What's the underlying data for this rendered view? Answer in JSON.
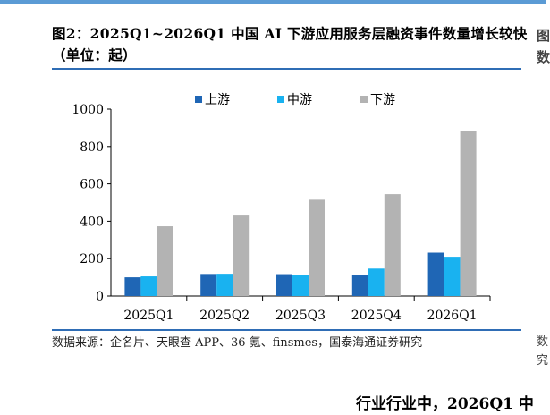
{
  "page": {
    "title": "图2：2025Q1~2026Q1 中国 AI 下游应用服务层融资事件数量增长较快（单位：起）",
    "source": "数据来源：企名片、天眼查 APP、36 氪、finsmes，国泰海通证券研究",
    "right_fragment_top": "图\n数",
    "right_fragment_bottom": "数\n究",
    "cut_heading": "行业行业中，2026Q1 中"
  },
  "colors": {
    "top_rule": "#5b9bd5",
    "rule": "#2f6db5",
    "series": [
      "#1f66b5",
      "#19b2f0",
      "#b3b3b3"
    ]
  },
  "chart_data": {
    "type": "bar",
    "title": "",
    "xlabel": "",
    "ylabel": "",
    "categories": [
      "2025Q1",
      "2025Q2",
      "2025Q3",
      "2025Q4",
      "2026Q1"
    ],
    "series": [
      {
        "name": "上游",
        "values": [
          100,
          118,
          117,
          110,
          232
        ]
      },
      {
        "name": "中游",
        "values": [
          105,
          119,
          112,
          147,
          210
        ]
      },
      {
        "name": "下游",
        "values": [
          373,
          435,
          515,
          545,
          883
        ]
      }
    ],
    "ylim": [
      0,
      1000
    ],
    "yticks": [
      0,
      200,
      400,
      600,
      800,
      1000
    ],
    "grid": false,
    "legend_position": "top-center"
  }
}
